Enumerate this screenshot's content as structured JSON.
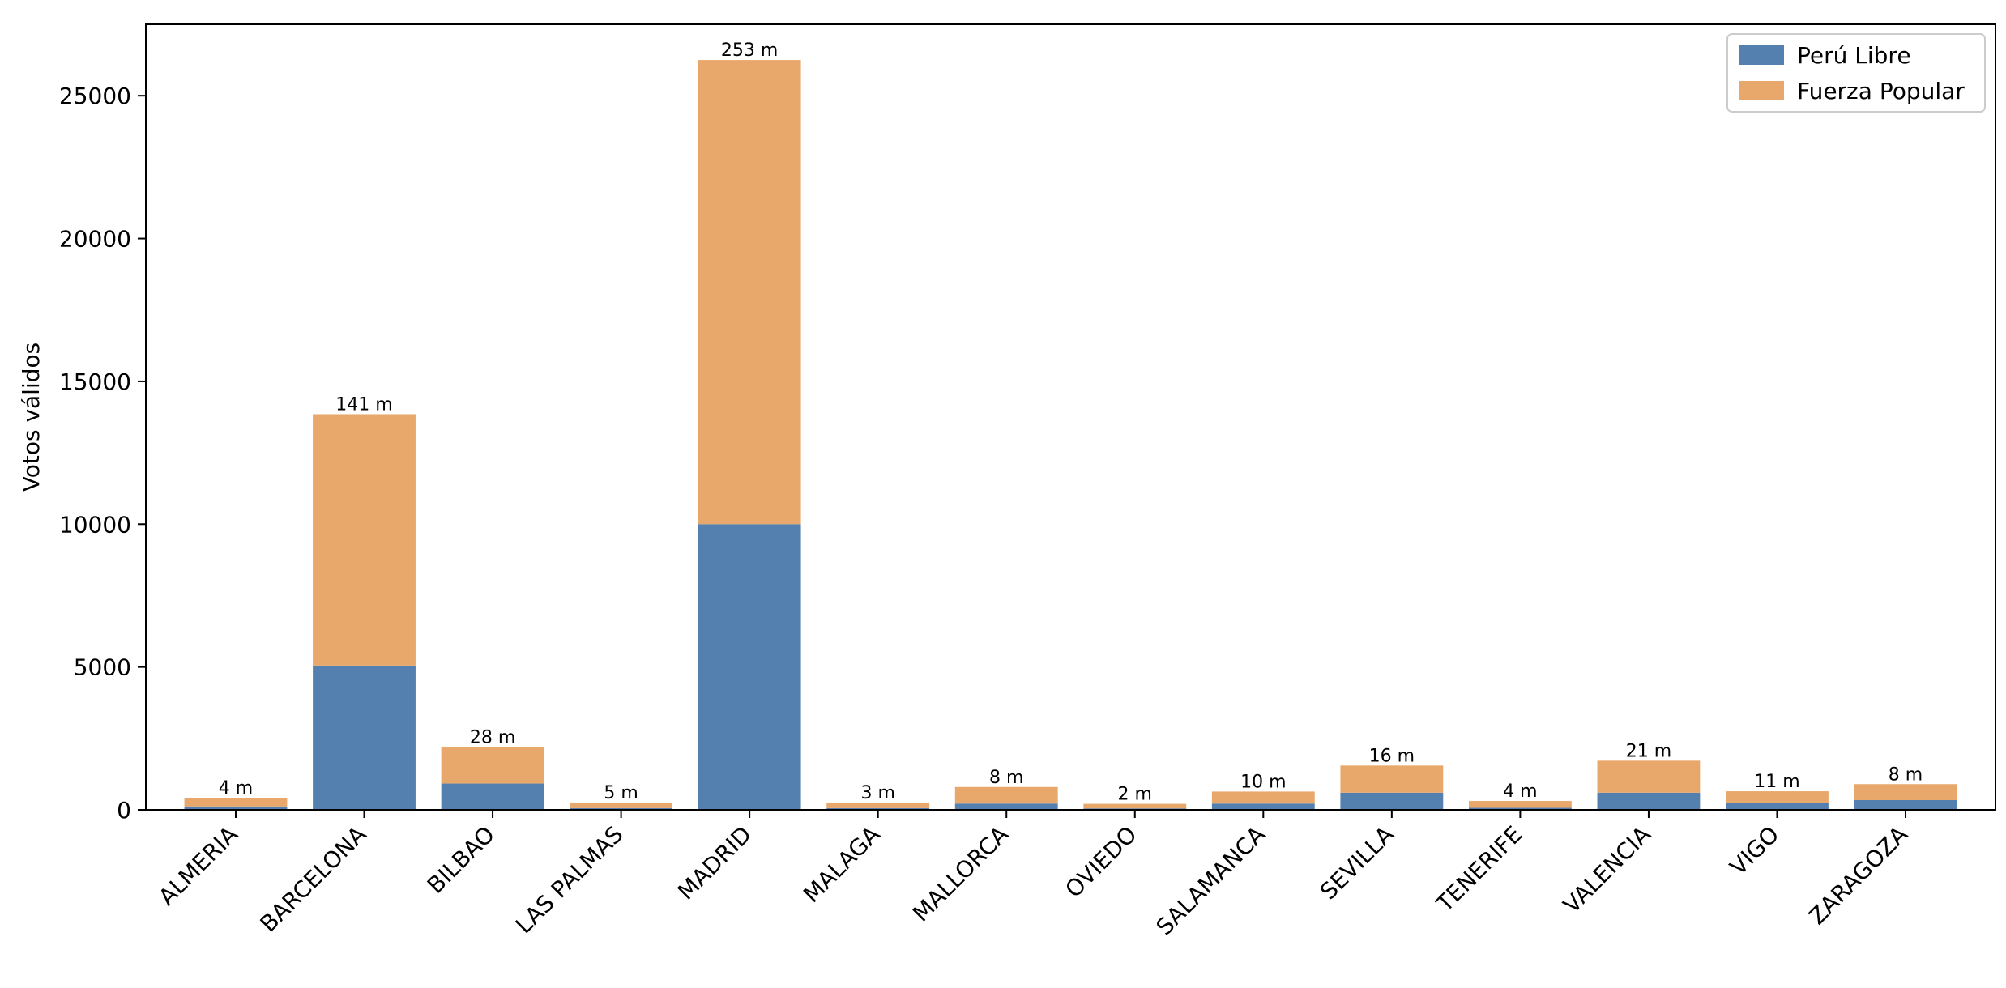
{
  "chart_data": {
    "type": "bar",
    "stacked": true,
    "title": "",
    "xlabel": "",
    "ylabel": "Votos válidos",
    "ylim": [
      0,
      27500
    ],
    "yticks": [
      0,
      5000,
      10000,
      15000,
      20000,
      25000
    ],
    "grid": false,
    "legend_position": "top-right",
    "categories": [
      "ALMERIA",
      "BARCELONA",
      "BILBAO",
      "LAS PALMAS",
      "MADRID",
      "MALAGA",
      "MALLORCA",
      "OVIEDO",
      "SALAMANCA",
      "SEVILLA",
      "TENERIFE",
      "VALENCIA",
      "VIGO",
      "ZARAGOZA"
    ],
    "series": [
      {
        "name": "Perú Libre",
        "color": "#5480b0",
        "values": [
          120,
          5050,
          920,
          60,
          10000,
          60,
          220,
          50,
          220,
          600,
          70,
          600,
          230,
          340
        ]
      },
      {
        "name": "Fuerza Popular",
        "color": "#e8a76b",
        "values": [
          300,
          8800,
          1280,
          190,
          16250,
          190,
          580,
          160,
          420,
          950,
          240,
          1120,
          420,
          560
        ]
      }
    ],
    "bar_labels": [
      "4 m",
      "141 m",
      "28 m",
      "5 m",
      "253 m",
      "3 m",
      "8 m",
      "2 m",
      "10 m",
      "16 m",
      "4 m",
      "21 m",
      "11 m",
      "8 m"
    ]
  }
}
